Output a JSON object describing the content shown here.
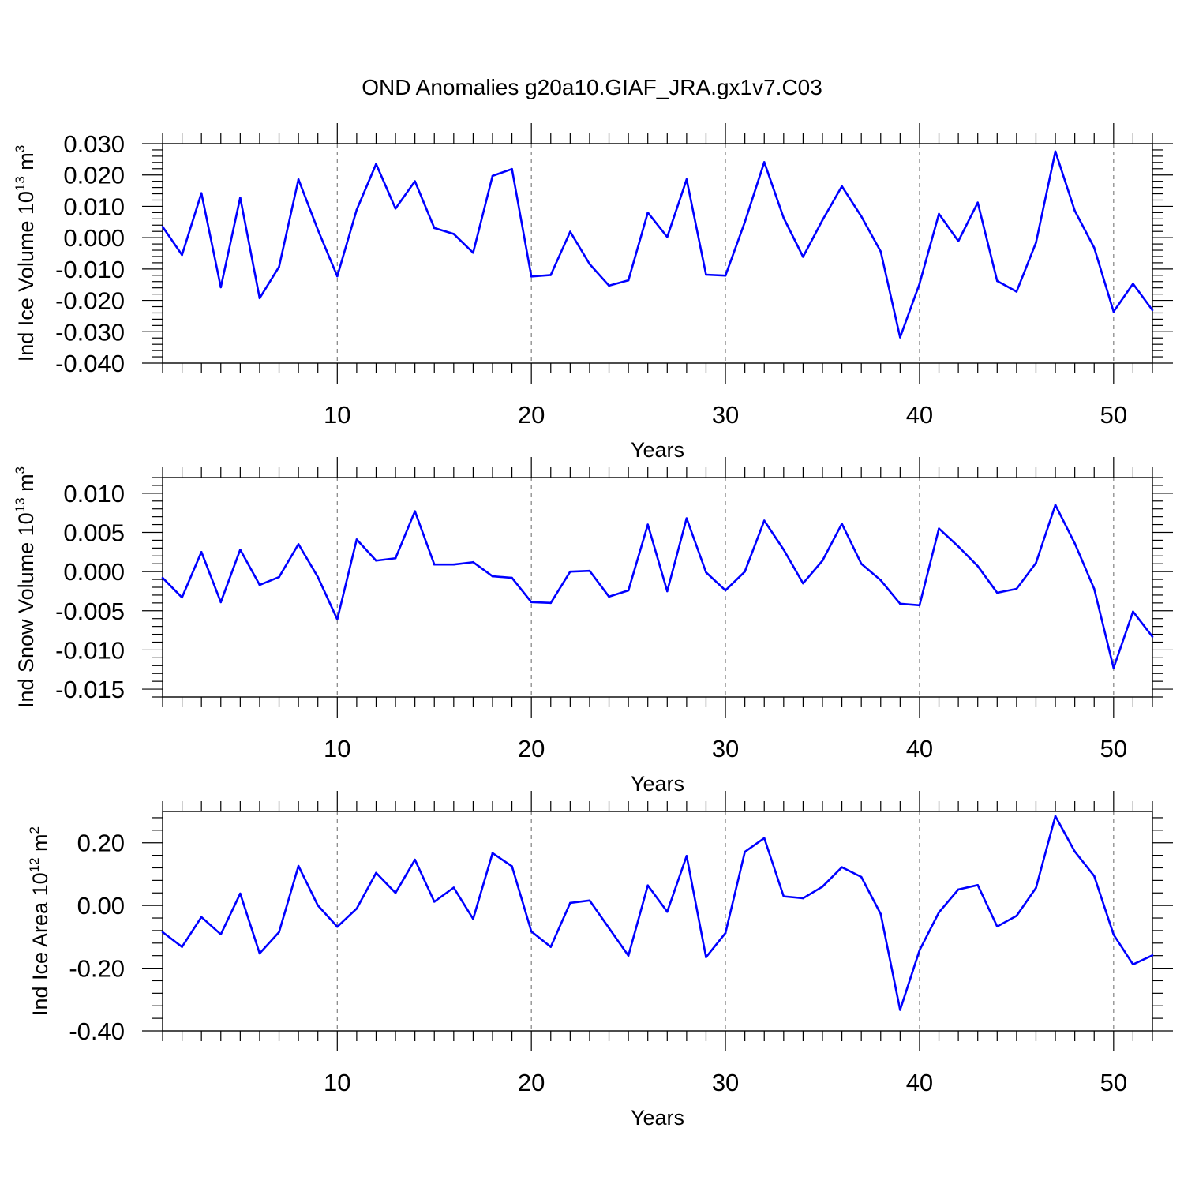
{
  "figure": {
    "title": "OND Anomalies g20a10.GIAF_JRA.gx1v7.C03"
  },
  "colors": {
    "line": "#0000ff",
    "grid": "#808080",
    "axes": "#000000"
  },
  "chart_data": [
    {
      "type": "line",
      "title": "OND Anomalies g20a10.GIAF_JRA.gx1v7.C03",
      "xlabel": "Years",
      "ylabel_main": "Ind Ice Volume 10",
      "ylabel_exp": "13",
      "ylabel_unit": " m",
      "ylabel_unit_exp": "3",
      "xlim": [
        1,
        52
      ],
      "ylim": [
        -0.04,
        0.03
      ],
      "yticks": [
        -0.04,
        -0.03,
        -0.02,
        -0.01,
        0.0,
        0.01,
        0.02,
        0.03
      ],
      "ytick_labels": [
        "-0.040",
        "-0.030",
        "-0.020",
        "-0.010",
        "0.000",
        "0.010",
        "0.020",
        "0.030"
      ],
      "xticks": [
        10,
        20,
        30,
        40,
        50
      ],
      "xtick_labels": [
        "10",
        "20",
        "30",
        "40",
        "50"
      ],
      "grid": "vertical dashed at major x ticks",
      "series": [
        {
          "values": [
            0.0035,
            -0.0055,
            0.0142,
            -0.0158,
            0.0128,
            -0.0193,
            -0.0093,
            0.0186,
            0.0025,
            -0.0123,
            0.0089,
            0.0235,
            0.0093,
            0.018,
            0.0031,
            0.0012,
            -0.0048,
            0.0197,
            0.0219,
            -0.0124,
            -0.0119,
            0.0019,
            -0.0084,
            -0.0153,
            -0.0136,
            0.008,
            0.0002,
            0.0186,
            -0.0118,
            -0.0121,
            0.005,
            0.0241,
            0.0063,
            -0.0061,
            0.0056,
            0.0164,
            0.0068,
            -0.0044,
            -0.0318,
            -0.0147,
            0.0076,
            -0.0011,
            0.0112,
            -0.0138,
            -0.0172,
            -0.0016,
            0.0275,
            0.0086,
            -0.0032,
            -0.0236,
            -0.0147,
            -0.0231
          ]
        }
      ]
    },
    {
      "type": "line",
      "xlabel": "Years",
      "ylabel_main": "Ind Snow Volume 10",
      "ylabel_exp": "13",
      "ylabel_unit": " m",
      "ylabel_unit_exp": "3",
      "xlim": [
        1,
        52
      ],
      "ylim": [
        -0.016,
        0.012
      ],
      "yticks": [
        -0.015,
        -0.01,
        -0.005,
        0.0,
        0.005,
        0.01
      ],
      "ytick_labels": [
        "-0.015",
        "-0.010",
        "-0.005",
        "0.000",
        "0.005",
        "0.010"
      ],
      "xticks": [
        10,
        20,
        30,
        40,
        50
      ],
      "xtick_labels": [
        "10",
        "20",
        "30",
        "40",
        "50"
      ],
      "grid": "vertical dashed at major x ticks",
      "series": [
        {
          "values": [
            -0.0008,
            -0.0033,
            0.0025,
            -0.0039,
            0.0028,
            -0.0017,
            -0.0007,
            0.0035,
            -0.0007,
            -0.0061,
            0.0041,
            0.0014,
            0.0017,
            0.0077,
            0.0009,
            0.0009,
            0.0012,
            -0.0006,
            -0.0008,
            -0.0039,
            -0.004,
            0.0,
            0.0001,
            -0.0032,
            -0.0024,
            0.006,
            -0.0025,
            0.0068,
            -0.0001,
            -0.0024,
            0.0,
            0.0065,
            0.0028,
            -0.0015,
            0.0014,
            0.0061,
            0.001,
            -0.0011,
            -0.0041,
            -0.0043,
            0.0055,
            0.0032,
            0.0007,
            -0.0027,
            -0.0022,
            0.0011,
            0.0085,
            0.0036,
            -0.0022,
            -0.0123,
            -0.0051,
            -0.0083
          ]
        }
      ]
    },
    {
      "type": "line",
      "xlabel": "Years",
      "ylabel_main": "Ind Ice Area 10",
      "ylabel_exp": "12",
      "ylabel_unit": " m",
      "ylabel_unit_exp": "2",
      "xlim": [
        1,
        52
      ],
      "ylim": [
        -0.4,
        0.3
      ],
      "yticks": [
        -0.4,
        -0.2,
        0.0,
        0.2
      ],
      "ytick_labels": [
        "-0.40",
        "-0.20",
        "0.00",
        "0.20"
      ],
      "xticks": [
        10,
        20,
        30,
        40,
        50
      ],
      "xtick_labels": [
        "10",
        "20",
        "30",
        "40",
        "50"
      ],
      "grid": "vertical dashed at major x ticks",
      "series": [
        {
          "values": [
            -0.085,
            -0.132,
            -0.037,
            -0.092,
            0.038,
            -0.153,
            -0.085,
            0.126,
            0.0,
            -0.068,
            -0.01,
            0.104,
            0.04,
            0.146,
            0.012,
            0.057,
            -0.043,
            0.167,
            0.125,
            -0.083,
            -0.132,
            0.008,
            0.016,
            -0.072,
            -0.16,
            0.064,
            -0.02,
            0.158,
            -0.165,
            -0.088,
            0.171,
            0.215,
            0.029,
            0.023,
            0.06,
            0.122,
            0.091,
            -0.027,
            -0.333,
            -0.143,
            -0.022,
            0.051,
            0.065,
            -0.067,
            -0.033,
            0.056,
            0.285,
            0.172,
            0.094,
            -0.093,
            -0.188,
            -0.159
          ]
        }
      ]
    }
  ]
}
